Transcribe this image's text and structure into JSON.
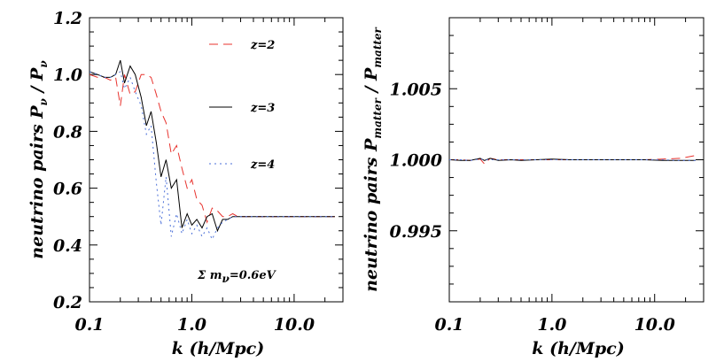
{
  "chart_data": [
    {
      "type": "line",
      "xlabel": "k (h/Mpc)",
      "ylabel_main": "neutrino pairs P",
      "ylabel_sub1": "ν",
      "ylabel_sep": " / P",
      "ylabel_sub2": "ν",
      "xscale": "log",
      "xlim": [
        0.1,
        30
      ],
      "ylim": [
        0.2,
        1.2
      ],
      "xticks": [
        {
          "v": 0.1,
          "label": "0.1"
        },
        {
          "v": 1.0,
          "label": "1.0"
        },
        {
          "v": 10.0,
          "label": "10.0"
        }
      ],
      "yticks": [
        {
          "v": 0.2,
          "label": "0.2"
        },
        {
          "v": 0.4,
          "label": "0.4"
        },
        {
          "v": 0.6,
          "label": "0.6"
        },
        {
          "v": 0.8,
          "label": "0.8"
        },
        {
          "v": 1.0,
          "label": "1.0"
        },
        {
          "v": 1.2,
          "label": "1.2"
        }
      ],
      "annotation": {
        "text": "Σ m",
        "sub": "ν",
        "tail": "=0.6eV"
      },
      "legend_placement": "top-right",
      "series": [
        {
          "name": "z=2",
          "color": "#e8332e",
          "dash": "10,6",
          "x": [
            0.1,
            0.12,
            0.14,
            0.16,
            0.18,
            0.2,
            0.22,
            0.25,
            0.28,
            0.32,
            0.36,
            0.4,
            0.45,
            0.5,
            0.56,
            0.63,
            0.71,
            0.8,
            0.9,
            1.0,
            1.12,
            1.26,
            1.41,
            1.58,
            1.78,
            2.0,
            2.24,
            2.51,
            2.82,
            3.16,
            3.55,
            4.0,
            5.0,
            7.0,
            10.0,
            15.0,
            20.0,
            25.0
          ],
          "y": [
            1.0,
            0.99,
            0.99,
            0.98,
            0.99,
            0.89,
            1.0,
            0.93,
            0.94,
            1.0,
            1.0,
            0.99,
            0.93,
            0.87,
            0.83,
            0.72,
            0.75,
            0.67,
            0.6,
            0.63,
            0.56,
            0.54,
            0.48,
            0.53,
            0.52,
            0.5,
            0.5,
            0.51,
            0.5,
            0.5,
            0.5,
            0.5,
            0.5,
            0.5,
            0.5,
            0.5,
            0.5,
            0.5
          ]
        },
        {
          "name": "z=3",
          "color": "#000000",
          "dash": "",
          "x": [
            0.1,
            0.12,
            0.14,
            0.16,
            0.18,
            0.2,
            0.22,
            0.25,
            0.28,
            0.32,
            0.36,
            0.4,
            0.45,
            0.5,
            0.56,
            0.63,
            0.71,
            0.8,
            0.9,
            1.0,
            1.12,
            1.26,
            1.41,
            1.58,
            1.78,
            2.0,
            2.24,
            2.51,
            2.82,
            3.16,
            3.55,
            4.0,
            5.0,
            7.0,
            10.0,
            15.0,
            20.0,
            25.0
          ],
          "y": [
            1.01,
            1.0,
            0.99,
            0.99,
            1.0,
            1.05,
            0.97,
            1.03,
            1.0,
            0.92,
            0.82,
            0.87,
            0.76,
            0.64,
            0.7,
            0.6,
            0.63,
            0.46,
            0.51,
            0.47,
            0.49,
            0.46,
            0.5,
            0.51,
            0.45,
            0.49,
            0.49,
            0.5,
            0.5,
            0.5,
            0.5,
            0.5,
            0.5,
            0.5,
            0.5,
            0.5,
            0.5,
            0.5
          ]
        },
        {
          "name": "z=4",
          "color": "#4a6fd8",
          "dash": "2,4",
          "x": [
            0.1,
            0.12,
            0.14,
            0.16,
            0.18,
            0.2,
            0.22,
            0.25,
            0.28,
            0.32,
            0.36,
            0.4,
            0.45,
            0.5,
            0.56,
            0.63,
            0.71,
            0.8,
            0.9,
            1.0,
            1.12,
            1.26,
            1.41,
            1.58,
            1.78,
            2.0,
            2.24,
            2.51,
            2.82,
            3.16,
            3.55,
            4.0,
            5.0,
            7.0,
            10.0,
            15.0,
            20.0,
            25.0
          ],
          "y": [
            1.01,
            1.0,
            0.99,
            0.99,
            1.0,
            1.01,
            0.95,
            0.99,
            0.94,
            0.89,
            0.79,
            0.82,
            0.62,
            0.47,
            0.64,
            0.43,
            0.51,
            0.44,
            0.49,
            0.44,
            0.47,
            0.43,
            0.46,
            0.42,
            0.46,
            0.48,
            0.49,
            0.5,
            0.5,
            0.5,
            0.5,
            0.5,
            0.5,
            0.5,
            0.5,
            0.5,
            0.5,
            0.5
          ]
        }
      ]
    },
    {
      "type": "line",
      "xlabel": "k (h/Mpc)",
      "ylabel_main": "neutrino pairs P",
      "ylabel_sub1": "matter",
      "ylabel_sep": " / P",
      "ylabel_sub2": "matter",
      "xscale": "log",
      "xlim": [
        0.1,
        30
      ],
      "ylim": [
        0.99,
        1.01
      ],
      "xticks": [
        {
          "v": 0.1,
          "label": "0.1"
        },
        {
          "v": 1.0,
          "label": "1.0"
        },
        {
          "v": 10.0,
          "label": "10.0"
        }
      ],
      "yticks": [
        {
          "v": 0.995,
          "label": "0.995"
        },
        {
          "v": 1.0,
          "label": "1.000"
        },
        {
          "v": 1.005,
          "label": "1.005"
        }
      ],
      "series": [
        {
          "name": "z=2",
          "color": "#e8332e",
          "dash": "10,6",
          "x": [
            0.1,
            0.13,
            0.16,
            0.2,
            0.22,
            0.25,
            0.3,
            0.4,
            0.5,
            0.7,
            1.0,
            1.5,
            2.0,
            3.0,
            5.0,
            8.0,
            12.0,
            18.0,
            25.0
          ],
          "y": [
            1.0,
            1.0,
            0.99995,
            1.00005,
            0.9997,
            1.0001,
            1.0,
            1.0,
            1.0,
            1.0,
            1.0,
            1.0,
            1.0,
            1.0,
            1.0,
            1.0,
            1.00005,
            1.0001,
            1.0003
          ]
        },
        {
          "name": "z=3",
          "color": "#000000",
          "dash": "",
          "x": [
            0.1,
            0.13,
            0.16,
            0.2,
            0.22,
            0.25,
            0.3,
            0.4,
            0.5,
            0.7,
            1.0,
            1.5,
            2.0,
            3.0,
            5.0,
            8.0,
            12.0,
            18.0,
            25.0
          ],
          "y": [
            1.0,
            0.99995,
            0.99995,
            1.0001,
            0.99995,
            1.0001,
            0.99995,
            1.0,
            0.99995,
            1.0,
            1.00005,
            1.0,
            1.0,
            1.0,
            1.0,
            1.0,
            0.99995,
            0.99995,
            0.99995
          ]
        },
        {
          "name": "z=4",
          "color": "#4a6fd8",
          "dash": "2,4",
          "x": [
            0.1,
            0.13,
            0.16,
            0.2,
            0.22,
            0.25,
            0.3,
            0.4,
            0.5,
            0.7,
            1.0,
            1.5,
            2.0,
            3.0,
            5.0,
            8.0,
            12.0,
            18.0,
            25.0
          ],
          "y": [
            1.0,
            1.0,
            0.99995,
            1.00005,
            1.0,
            1.0,
            1.0,
            1.0,
            1.0,
            1.0,
            1.0,
            1.0,
            1.0,
            1.0,
            1.0,
            1.0,
            1.0,
            0.99995,
            0.99995
          ]
        }
      ]
    }
  ]
}
